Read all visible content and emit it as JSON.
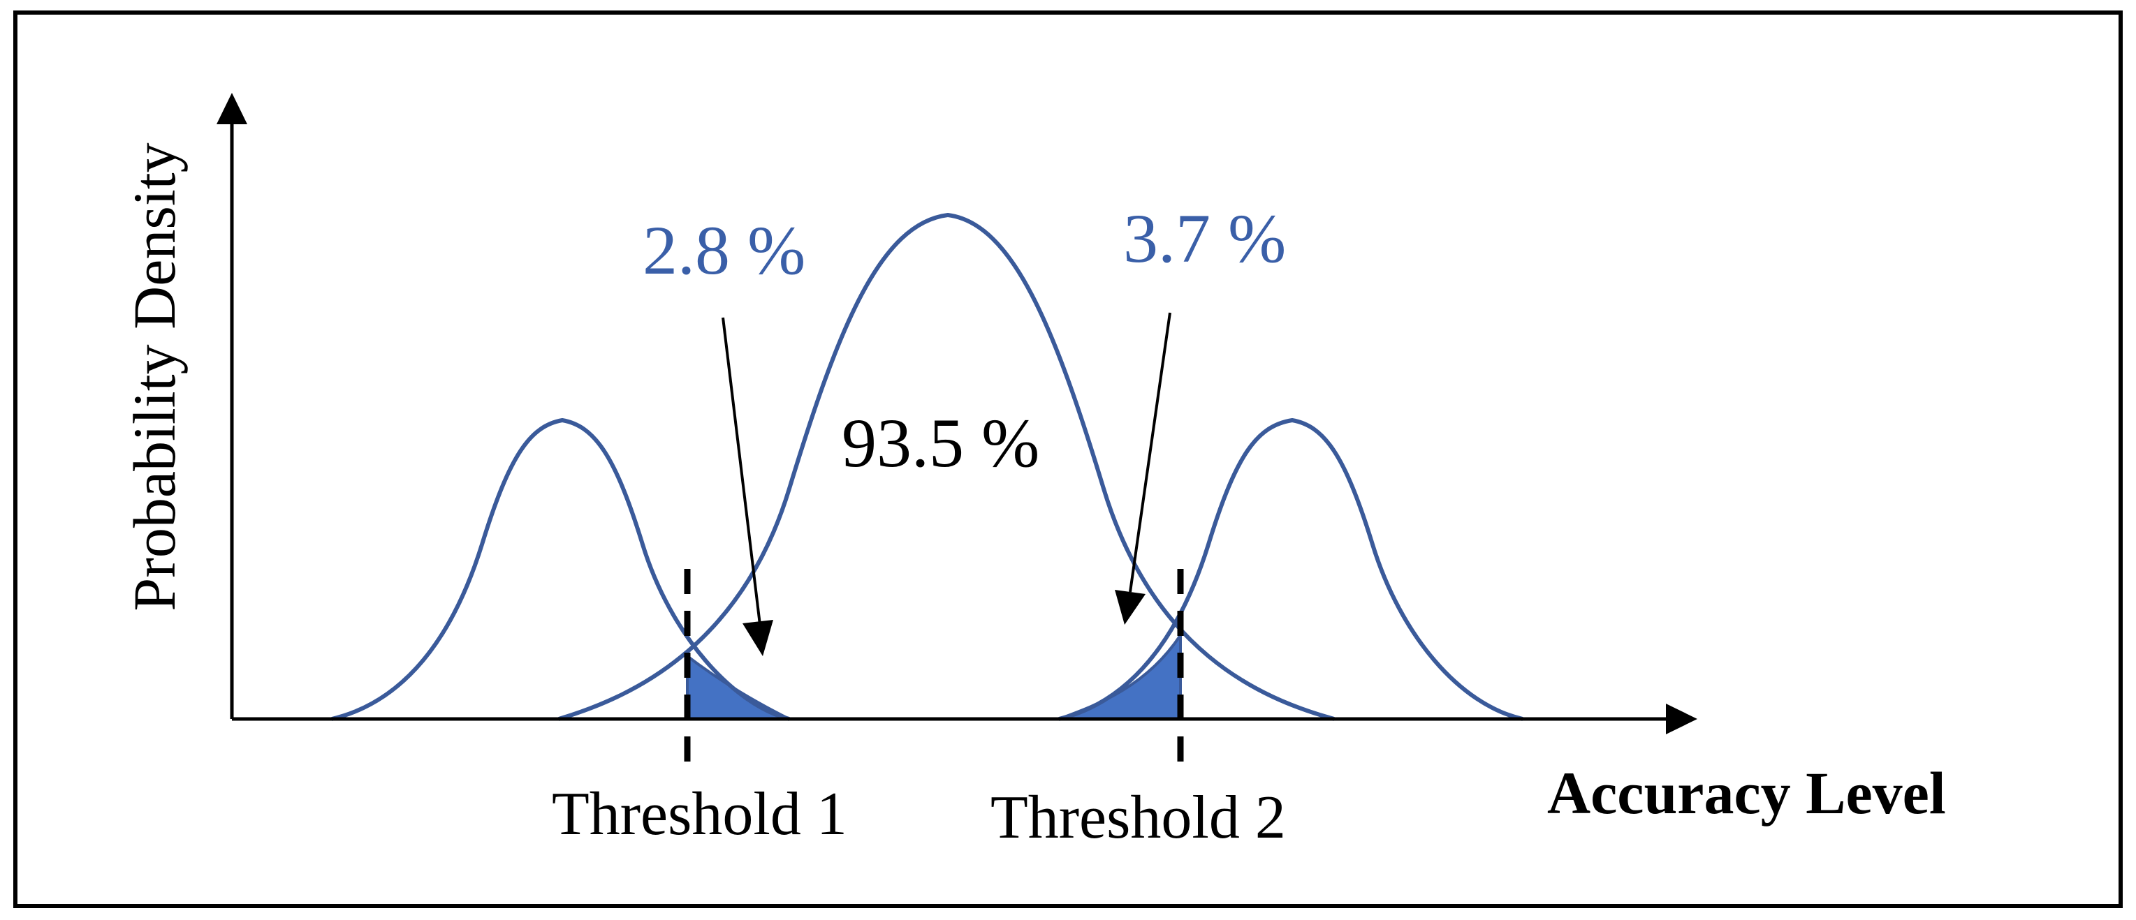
{
  "axes": {
    "x_label": "Accuracy Level",
    "y_label": "Probability Density"
  },
  "thresholds": [
    {
      "label": "Threshold 1"
    },
    {
      "label": "Threshold 2"
    }
  ],
  "percentages": {
    "left_overlap": "2.8 %",
    "center": "93.5 %",
    "right_overlap": "3.7 %"
  },
  "colors": {
    "curve": "#3a5a9a",
    "fill": "#4472c4",
    "highlight_text": "#3a5fa8",
    "ink": "#000000",
    "frame": "#000000"
  }
}
